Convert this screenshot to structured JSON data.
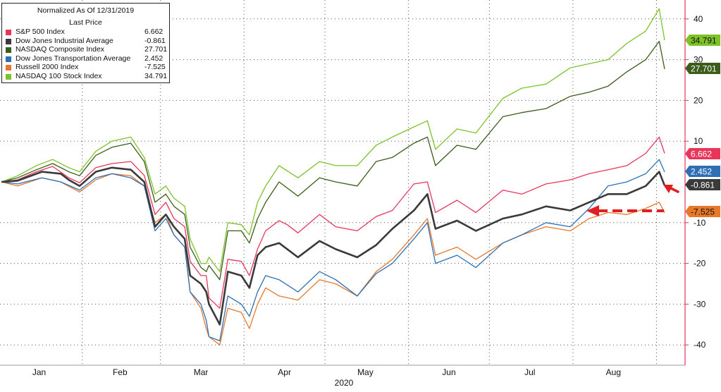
{
  "chart_data": {
    "type": "line",
    "title": "Normalized As Of 12/31/2019",
    "legend_header": "Last Price",
    "legend_position": "top-left",
    "xlabel": "2020",
    "x_ticks": [
      "Jan",
      "Feb",
      "Mar",
      "Apr",
      "May",
      "Jun",
      "Jul",
      "Aug"
    ],
    "y_ticks": [
      40,
      30,
      20,
      10,
      -10,
      -20,
      -30,
      -40
    ],
    "ylim": [
      -44,
      44
    ],
    "grid": true,
    "y_axis_side": "right",
    "series": [
      {
        "name": "S&P 500 Index",
        "last": "6.662",
        "color": "#e8365a",
        "points": [
          [
            "2020-01-02",
            0
          ],
          [
            "2020-01-08",
            0.5
          ],
          [
            "2020-01-15",
            2.5
          ],
          [
            "2020-01-21",
            3.8
          ],
          [
            "2020-01-27",
            1
          ],
          [
            "2020-01-31",
            -0.2
          ],
          [
            "2020-02-06",
            3.5
          ],
          [
            "2020-02-12",
            4.5
          ],
          [
            "2020-02-19",
            5
          ],
          [
            "2020-02-24",
            1.6
          ],
          [
            "2020-02-28",
            -8
          ],
          [
            "2020-03-03",
            -5
          ],
          [
            "2020-03-06",
            -9
          ],
          [
            "2020-03-10",
            -11
          ],
          [
            "2020-03-12",
            -19.5
          ],
          [
            "2020-03-16",
            -23
          ],
          [
            "2020-03-18",
            -23
          ],
          [
            "2020-03-19",
            -28.5
          ],
          [
            "2020-03-23",
            -31
          ],
          [
            "2020-03-26",
            -19
          ],
          [
            "2020-03-31",
            -19.5
          ],
          [
            "2020-04-03",
            -23
          ],
          [
            "2020-04-06",
            -16.5
          ],
          [
            "2020-04-09",
            -12
          ],
          [
            "2020-04-14",
            -9.5
          ],
          [
            "2020-04-17",
            -10.5
          ],
          [
            "2020-04-21",
            -12.5
          ],
          [
            "2020-04-29",
            -8
          ],
          [
            "2020-05-05",
            -11
          ],
          [
            "2020-05-13",
            -12
          ],
          [
            "2020-05-20",
            -8.5
          ],
          [
            "2020-05-26",
            -7
          ],
          [
            "2020-06-03",
            -0.5
          ],
          [
            "2020-06-08",
            0
          ],
          [
            "2020-06-11",
            -7.5
          ],
          [
            "2020-06-19",
            -4.5
          ],
          [
            "2020-06-26",
            -7.5
          ],
          [
            "2020-07-06",
            -2
          ],
          [
            "2020-07-13",
            -3
          ],
          [
            "2020-07-22",
            -0.5
          ],
          [
            "2020-07-31",
            0.5
          ],
          [
            "2020-08-07",
            2
          ],
          [
            "2020-08-14",
            3
          ],
          [
            "2020-08-21",
            4
          ],
          [
            "2020-08-28",
            7
          ],
          [
            "2020-09-02",
            11
          ],
          [
            "2020-09-04",
            7
          ]
        ]
      },
      {
        "name": "Dow Jones Industrial Average",
        "last": "-0.861",
        "color": "#3a3a3a",
        "points": [
          [
            "2020-01-02",
            0
          ],
          [
            "2020-01-08",
            0.3
          ],
          [
            "2020-01-17",
            2.5
          ],
          [
            "2020-01-24",
            2
          ],
          [
            "2020-01-27",
            0.5
          ],
          [
            "2020-01-31",
            -1
          ],
          [
            "2020-02-06",
            2.5
          ],
          [
            "2020-02-12",
            3.5
          ],
          [
            "2020-02-19",
            3
          ],
          [
            "2020-02-24",
            0
          ],
          [
            "2020-02-28",
            -11
          ],
          [
            "2020-03-03",
            -8
          ],
          [
            "2020-03-06",
            -11
          ],
          [
            "2020-03-10",
            -14
          ],
          [
            "2020-03-12",
            -23
          ],
          [
            "2020-03-16",
            -25
          ],
          [
            "2020-03-18",
            -27
          ],
          [
            "2020-03-19",
            -30
          ],
          [
            "2020-03-23",
            -35
          ],
          [
            "2020-03-26",
            -22
          ],
          [
            "2020-03-31",
            -23
          ],
          [
            "2020-04-03",
            -26
          ],
          [
            "2020-04-06",
            -18
          ],
          [
            "2020-04-09",
            -16
          ],
          [
            "2020-04-14",
            -15
          ],
          [
            "2020-04-21",
            -18.5
          ],
          [
            "2020-04-29",
            -14.5
          ],
          [
            "2020-05-05",
            -16.5
          ],
          [
            "2020-05-13",
            -18.5
          ],
          [
            "2020-05-20",
            -15.5
          ],
          [
            "2020-05-26",
            -11.5
          ],
          [
            "2020-06-03",
            -7
          ],
          [
            "2020-06-08",
            -3
          ],
          [
            "2020-06-11",
            -11.5
          ],
          [
            "2020-06-19",
            -9.5
          ],
          [
            "2020-06-26",
            -12
          ],
          [
            "2020-07-06",
            -9
          ],
          [
            "2020-07-13",
            -8
          ],
          [
            "2020-07-22",
            -6
          ],
          [
            "2020-07-31",
            -7
          ],
          [
            "2020-08-07",
            -5
          ],
          [
            "2020-08-14",
            -3
          ],
          [
            "2020-08-21",
            -3
          ],
          [
            "2020-08-28",
            -1
          ],
          [
            "2020-09-02",
            2.5
          ],
          [
            "2020-09-04",
            -0.9
          ]
        ]
      },
      {
        "name": "NASDAQ Composite Index",
        "last": "27.701",
        "color": "#3b5c1a",
        "points": [
          [
            "2020-01-02",
            0
          ],
          [
            "2020-01-08",
            1
          ],
          [
            "2020-01-15",
            3
          ],
          [
            "2020-01-21",
            4.5
          ],
          [
            "2020-01-27",
            2.5
          ],
          [
            "2020-01-31",
            1.5
          ],
          [
            "2020-02-06",
            6.5
          ],
          [
            "2020-02-12",
            8.5
          ],
          [
            "2020-02-19",
            9.5
          ],
          [
            "2020-02-24",
            5
          ],
          [
            "2020-02-28",
            -5
          ],
          [
            "2020-03-03",
            -3
          ],
          [
            "2020-03-06",
            -6
          ],
          [
            "2020-03-10",
            -8
          ],
          [
            "2020-03-12",
            -16
          ],
          [
            "2020-03-16",
            -21
          ],
          [
            "2020-03-18",
            -22
          ],
          [
            "2020-03-19",
            -20.5
          ],
          [
            "2020-03-23",
            -24
          ],
          [
            "2020-03-26",
            -12
          ],
          [
            "2020-03-31",
            -12
          ],
          [
            "2020-04-03",
            -15
          ],
          [
            "2020-04-06",
            -9
          ],
          [
            "2020-04-09",
            -5
          ],
          [
            "2020-04-14",
            0
          ],
          [
            "2020-04-21",
            -3.5
          ],
          [
            "2020-04-29",
            1
          ],
          [
            "2020-05-05",
            0
          ],
          [
            "2020-05-13",
            -1
          ],
          [
            "2020-05-20",
            5
          ],
          [
            "2020-05-26",
            6
          ],
          [
            "2020-06-03",
            9.5
          ],
          [
            "2020-06-08",
            11
          ],
          [
            "2020-06-11",
            4
          ],
          [
            "2020-06-19",
            9
          ],
          [
            "2020-06-26",
            8
          ],
          [
            "2020-07-06",
            16
          ],
          [
            "2020-07-13",
            17
          ],
          [
            "2020-07-22",
            18
          ],
          [
            "2020-07-31",
            21
          ],
          [
            "2020-08-07",
            22
          ],
          [
            "2020-08-14",
            23.5
          ],
          [
            "2020-08-21",
            27
          ],
          [
            "2020-08-28",
            30
          ],
          [
            "2020-09-02",
            34.5
          ],
          [
            "2020-09-04",
            27.7
          ]
        ]
      },
      {
        "name": "Dow Jones Transportation Average",
        "last": "2.452",
        "color": "#2e6fb5",
        "points": [
          [
            "2020-01-02",
            0
          ],
          [
            "2020-01-08",
            -0.5
          ],
          [
            "2020-01-17",
            1
          ],
          [
            "2020-01-24",
            0
          ],
          [
            "2020-01-31",
            -2
          ],
          [
            "2020-02-06",
            1
          ],
          [
            "2020-02-12",
            2
          ],
          [
            "2020-02-19",
            1
          ],
          [
            "2020-02-24",
            -1
          ],
          [
            "2020-02-28",
            -12
          ],
          [
            "2020-03-03",
            -9
          ],
          [
            "2020-03-06",
            -13
          ],
          [
            "2020-03-10",
            -16
          ],
          [
            "2020-03-12",
            -27
          ],
          [
            "2020-03-16",
            -30
          ],
          [
            "2020-03-18",
            -34
          ],
          [
            "2020-03-19",
            -38
          ],
          [
            "2020-03-23",
            -39
          ],
          [
            "2020-03-26",
            -28
          ],
          [
            "2020-03-31",
            -30
          ],
          [
            "2020-04-03",
            -33
          ],
          [
            "2020-04-06",
            -27
          ],
          [
            "2020-04-09",
            -23
          ],
          [
            "2020-04-14",
            -24
          ],
          [
            "2020-04-21",
            -27
          ],
          [
            "2020-04-29",
            -22
          ],
          [
            "2020-05-05",
            -24
          ],
          [
            "2020-05-13",
            -28
          ],
          [
            "2020-05-20",
            -22.5
          ],
          [
            "2020-05-26",
            -20
          ],
          [
            "2020-06-03",
            -14
          ],
          [
            "2020-06-08",
            -10
          ],
          [
            "2020-06-11",
            -20
          ],
          [
            "2020-06-19",
            -18
          ],
          [
            "2020-06-26",
            -21
          ],
          [
            "2020-07-06",
            -15
          ],
          [
            "2020-07-13",
            -13
          ],
          [
            "2020-07-22",
            -10
          ],
          [
            "2020-07-31",
            -11
          ],
          [
            "2020-08-07",
            -6.5
          ],
          [
            "2020-08-14",
            -1
          ],
          [
            "2020-08-21",
            0
          ],
          [
            "2020-08-28",
            2
          ],
          [
            "2020-09-02",
            5.5
          ],
          [
            "2020-09-04",
            2.45
          ]
        ]
      },
      {
        "name": "Russell 2000 Index",
        "last": "-7.525",
        "color": "#e8782a",
        "points": [
          [
            "2020-01-02",
            0
          ],
          [
            "2020-01-08",
            -1
          ],
          [
            "2020-01-17",
            1
          ],
          [
            "2020-01-24",
            0
          ],
          [
            "2020-01-31",
            -2.5
          ],
          [
            "2020-02-06",
            0.5
          ],
          [
            "2020-02-12",
            2
          ],
          [
            "2020-02-19",
            1.5
          ],
          [
            "2020-02-24",
            -1
          ],
          [
            "2020-02-28",
            -10
          ],
          [
            "2020-03-03",
            -8
          ],
          [
            "2020-03-06",
            -13
          ],
          [
            "2020-03-10",
            -16
          ],
          [
            "2020-03-12",
            -27
          ],
          [
            "2020-03-16",
            -31
          ],
          [
            "2020-03-18",
            -36
          ],
          [
            "2020-03-19",
            -38
          ],
          [
            "2020-03-23",
            -40
          ],
          [
            "2020-03-26",
            -31
          ],
          [
            "2020-03-31",
            -32
          ],
          [
            "2020-04-03",
            -36
          ],
          [
            "2020-04-06",
            -30
          ],
          [
            "2020-04-09",
            -26
          ],
          [
            "2020-04-14",
            -28
          ],
          [
            "2020-04-21",
            -29
          ],
          [
            "2020-04-29",
            -24
          ],
          [
            "2020-05-05",
            -25
          ],
          [
            "2020-05-13",
            -28
          ],
          [
            "2020-05-20",
            -22
          ],
          [
            "2020-05-26",
            -19
          ],
          [
            "2020-06-03",
            -13
          ],
          [
            "2020-06-08",
            -9
          ],
          [
            "2020-06-11",
            -18
          ],
          [
            "2020-06-19",
            -16
          ],
          [
            "2020-06-26",
            -19
          ],
          [
            "2020-07-06",
            -15
          ],
          [
            "2020-07-13",
            -13
          ],
          [
            "2020-07-22",
            -11
          ],
          [
            "2020-07-31",
            -12
          ],
          [
            "2020-08-07",
            -9
          ],
          [
            "2020-08-14",
            -7.5
          ],
          [
            "2020-08-21",
            -8
          ],
          [
            "2020-08-28",
            -6.5
          ],
          [
            "2020-09-02",
            -5
          ],
          [
            "2020-09-04",
            -7.5
          ]
        ]
      },
      {
        "name": "NASDAQ 100 Stock Index",
        "last": "34.791",
        "color": "#7ec22a",
        "points": [
          [
            "2020-01-02",
            0
          ],
          [
            "2020-01-08",
            1.5
          ],
          [
            "2020-01-15",
            4
          ],
          [
            "2020-01-21",
            5.5
          ],
          [
            "2020-01-27",
            3.5
          ],
          [
            "2020-01-31",
            2.5
          ],
          [
            "2020-02-06",
            7.5
          ],
          [
            "2020-02-12",
            10
          ],
          [
            "2020-02-19",
            11
          ],
          [
            "2020-02-24",
            6
          ],
          [
            "2020-02-28",
            -3
          ],
          [
            "2020-03-03",
            -1
          ],
          [
            "2020-03-06",
            -4
          ],
          [
            "2020-03-10",
            -6
          ],
          [
            "2020-03-12",
            -14
          ],
          [
            "2020-03-16",
            -20
          ],
          [
            "2020-03-18",
            -20
          ],
          [
            "2020-03-19",
            -18.5
          ],
          [
            "2020-03-23",
            -22
          ],
          [
            "2020-03-26",
            -10
          ],
          [
            "2020-03-31",
            -10.5
          ],
          [
            "2020-04-03",
            -13
          ],
          [
            "2020-04-06",
            -5
          ],
          [
            "2020-04-09",
            -1
          ],
          [
            "2020-04-14",
            4
          ],
          [
            "2020-04-21",
            1
          ],
          [
            "2020-04-29",
            5
          ],
          [
            "2020-05-05",
            4
          ],
          [
            "2020-05-13",
            4
          ],
          [
            "2020-05-20",
            9
          ],
          [
            "2020-05-26",
            11
          ],
          [
            "2020-06-03",
            13.5
          ],
          [
            "2020-06-08",
            15
          ],
          [
            "2020-06-11",
            8
          ],
          [
            "2020-06-19",
            13
          ],
          [
            "2020-06-26",
            12
          ],
          [
            "2020-07-06",
            20.5
          ],
          [
            "2020-07-13",
            23
          ],
          [
            "2020-07-22",
            24
          ],
          [
            "2020-07-31",
            28
          ],
          [
            "2020-08-07",
            29
          ],
          [
            "2020-08-14",
            30
          ],
          [
            "2020-08-21",
            34
          ],
          [
            "2020-08-28",
            37
          ],
          [
            "2020-09-02",
            42.5
          ],
          [
            "2020-09-04",
            34.8
          ]
        ]
      }
    ]
  }
}
